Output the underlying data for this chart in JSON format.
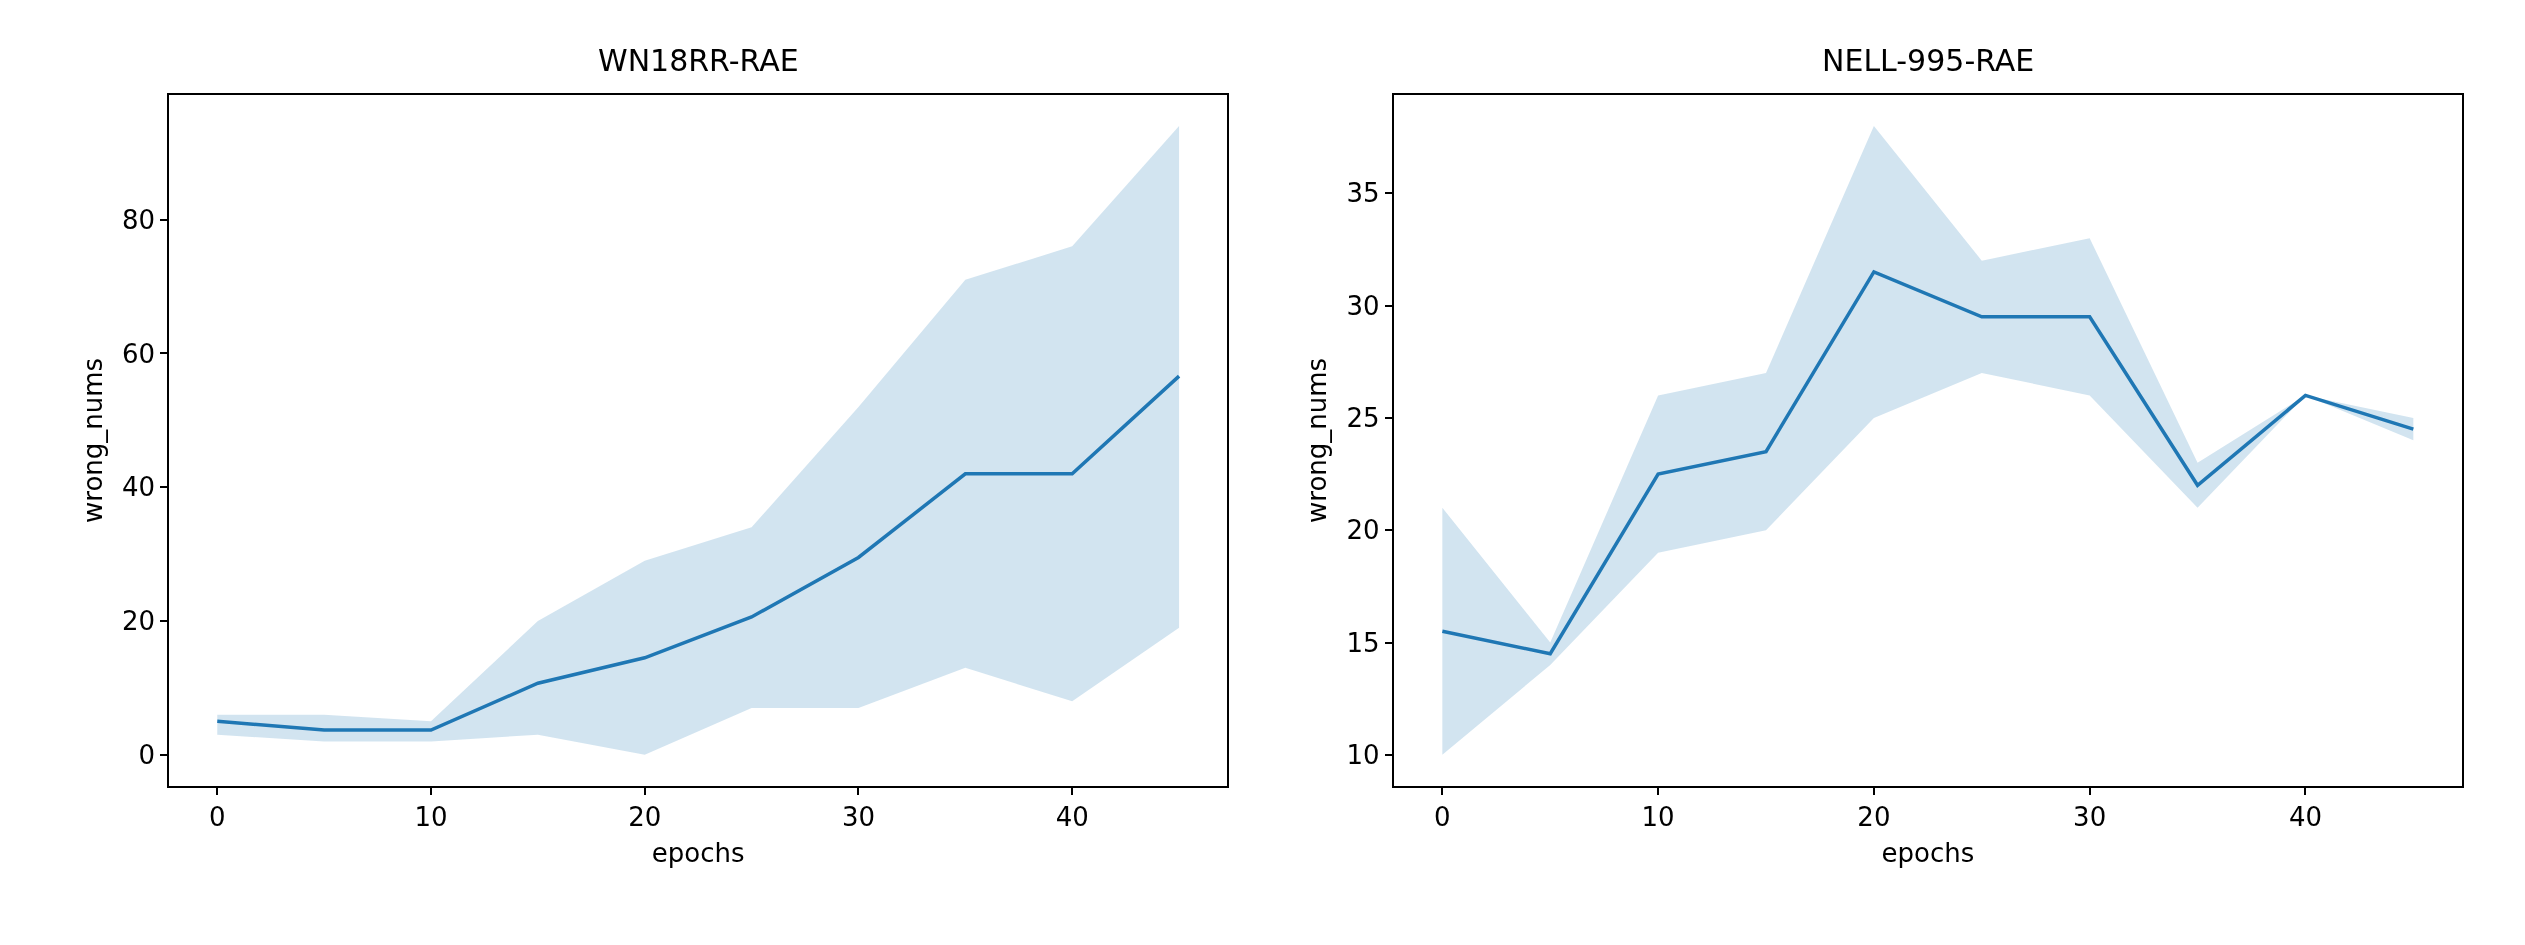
{
  "chart_data": [
    {
      "type": "line",
      "title": "WN18RR-RAE",
      "xlabel": "epochs",
      "ylabel": "wrong_nums",
      "x": [
        0,
        5,
        10,
        15,
        20,
        25,
        30,
        35,
        40,
        45
      ],
      "series": [
        {
          "color": "#1f77b4",
          "values": [
            5.0,
            3.7,
            3.7,
            10.7,
            14.5,
            20.6,
            29.5,
            42,
            42,
            56.6
          ],
          "lower": [
            3,
            2,
            2,
            3,
            0,
            7,
            7,
            13,
            8,
            19
          ],
          "upper": [
            6,
            6,
            5,
            20,
            29,
            34,
            52,
            71,
            76,
            94
          ]
        }
      ],
      "xlim": [
        -2.25,
        47.25
      ],
      "xticks": [
        0,
        10,
        20,
        30,
        40
      ],
      "ylim": [
        -4.7,
        98.7
      ],
      "yticks": [
        0,
        20,
        40,
        60,
        80
      ]
    },
    {
      "type": "line",
      "title": "NELL-995-RAE",
      "xlabel": "epochs",
      "ylabel": "wrong_nums",
      "x": [
        0,
        5,
        10,
        15,
        20,
        25,
        30,
        35,
        40,
        45
      ],
      "series": [
        {
          "color": "#1f77b4",
          "values": [
            15.5,
            14.5,
            22.5,
            23.5,
            31.5,
            29.5,
            29.5,
            22,
            26,
            24.5
          ],
          "lower": [
            10,
            14,
            19,
            20,
            25,
            27,
            26,
            21,
            26,
            24
          ],
          "upper": [
            21,
            15,
            26,
            27,
            38,
            32,
            33,
            23,
            26,
            25
          ]
        }
      ],
      "xlim": [
        -2.25,
        47.25
      ],
      "xticks": [
        0,
        10,
        20,
        30,
        40
      ],
      "ylim": [
        8.6,
        39.4
      ],
      "yticks": [
        10,
        15,
        20,
        25,
        30,
        35
      ]
    }
  ]
}
